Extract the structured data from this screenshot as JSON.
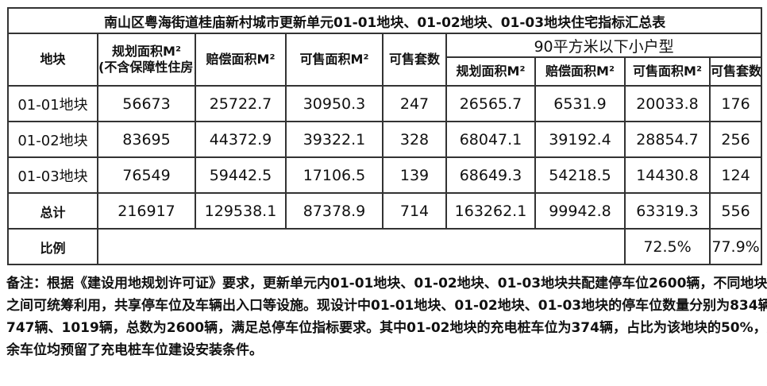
{
  "table": {
    "title": "南山区粤海街道桂庙新村城市更新单元01-01地块、01-02地块、01-03地块住宅指标汇总表",
    "headers": {
      "plot": "地块",
      "planned_area": "规划面积M²",
      "planned_area_note": "(不含保障性住房)",
      "compensation_area": "赔偿面积M²",
      "saleable_area": "可售面积M²",
      "saleable_units": "可售套数",
      "small_group": "90平方米以下小户型",
      "sub_planned_area": "规划面积M²",
      "sub_compensation_area": "赔偿面积M²",
      "sub_saleable_area": "可售面积M²",
      "sub_saleable_units": "可售套数"
    },
    "rows": [
      {
        "plot": "01-01地块",
        "values": [
          "56673",
          "25722.7",
          "30950.3",
          "247",
          "26565.7",
          "6531.9",
          "20033.8",
          "176"
        ]
      },
      {
        "plot": "01-02地块",
        "values": [
          "83695",
          "44372.9",
          "39322.1",
          "328",
          "68047.1",
          "39192.4",
          "28854.7",
          "256"
        ]
      },
      {
        "plot": "01-03地块",
        "values": [
          "76549",
          "59442.5",
          "17106.5",
          "139",
          "68649.3",
          "54218.5",
          "14430.8",
          "124"
        ]
      },
      {
        "plot": "总计",
        "values": [
          "216917",
          "129538.1",
          "87378.9",
          "714",
          "163262.1",
          "99942.8",
          "63319.3",
          "556"
        ]
      }
    ],
    "ratio": {
      "label": "比例",
      "saleable_area": "72.5%",
      "saleable_units": "77.9%"
    }
  },
  "notes": [
    "备注：根据《建设用地规划许可证》要求，更新单元内01-01地块、01-02地块、01-03地块共配建停车位2600辆，不同地块",
    "之间可统筹利用，共享停车位及车辆出入口等设施。现设计中01-01地块、01-02地块、01-03地块的停车位数量分别为834辆、",
    "747辆、1019辆，总数为2600辆，满足总停车位指标要求。其中01-02地块的充电桩车位为374辆，占比为该地块的50%，其",
    "余车位均预留了充电桩车位建设安装条件。"
  ]
}
